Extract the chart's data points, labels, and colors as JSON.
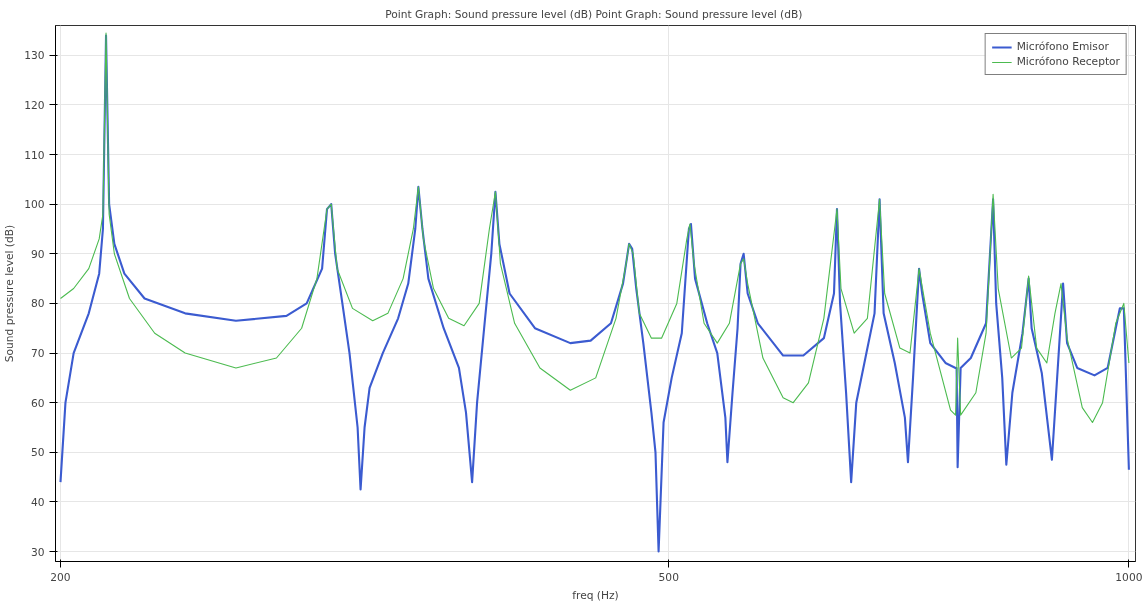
{
  "chart_data": {
    "type": "line",
    "title": "Point Graph: Sound pressure level (dB)  Point Graph: Sound pressure level (dB)",
    "xlabel": "freq (Hz)",
    "ylabel": "Sound pressure level (dB)",
    "log": "x",
    "xlim": [
      198.5,
      1010
    ],
    "xticks": [
      200,
      500,
      1000
    ],
    "ylim": [
      28,
      136
    ],
    "yticks": [
      30,
      40,
      50,
      60,
      70,
      80,
      90,
      100,
      110,
      120,
      130
    ],
    "grid": true,
    "legend": "top right",
    "line_style": "solid",
    "marker": "none",
    "series": [
      {
        "name": "Micrófono Emisor",
        "color": "#3b5bd0",
        "x": [
          200,
          201.5,
          204,
          208.7,
          212,
          213.2,
          214.2,
          215.2,
          216.9,
          220.2,
          227,
          241.3,
          260.5,
          281.1,
          289.8,
          296.6,
          298.8,
          300.7,
          302.5,
          305.8,
          309.1,
          312.9,
          314.3,
          316.2,
          318.6,
          325,
          332.6,
          337.7,
          341.3,
          342.9,
          345,
          348.1,
          356.2,
          364.5,
          368.4,
          371.8,
          374.6,
          378.6,
          382.7,
          385.1,
          387.4,
          393.4,
          408.7,
          431.1,
          444.5,
          458.3,
          466.7,
          471,
          473.2,
          476.1,
          481.2,
          487.1,
          490.1,
          492.4,
          496.1,
          502.2,
          509.9,
          515.4,
          517,
          520.2,
          529.8,
          537.9,
          544.5,
          546.2,
          550.4,
          554.6,
          557.1,
          559.7,
          563.1,
          571.8,
          594,
          612.4,
          631.6,
          641.3,
          644.2,
          647.2,
          653.1,
          658.1,
          663.2,
          673.4,
          681.7,
          686.9,
          691.1,
          702.8,
          713.6,
          716.9,
          722.4,
          729,
          732.4,
          741.4,
          758.6,
          770.2,
          771.4,
          772.6,
          776.1,
          788.1,
          806.4,
          815,
          818.8,
          826.3,
          831.4,
          839,
          851.9,
          859.8,
          863.7,
          877,
          890.5,
          900.1,
          905.6,
          911.1,
          925.1,
          949.5,
          968.5,
          980.4,
          986.4,
          992.4,
          1000
        ],
        "values": [
          44,
          60,
          70,
          78,
          86,
          95,
          134,
          100,
          92,
          86,
          81,
          78,
          76.5,
          77.5,
          80,
          87,
          99,
          100,
          90,
          80,
          70,
          55,
          42.5,
          55,
          63,
          70,
          77,
          84,
          95,
          103.5,
          95,
          85,
          75,
          67,
          58,
          44,
          60,
          75,
          90,
          102.5,
          92,
          82,
          75,
          72,
          72.5,
          76,
          84,
          92,
          91,
          83,
          72,
          58,
          50,
          30,
          56,
          65,
          74,
          95,
          96,
          85,
          76,
          70,
          57,
          48,
          62,
          75,
          88,
          90,
          82,
          76,
          69.5,
          69.5,
          73,
          82,
          99,
          80,
          62,
          44,
          60,
          70,
          78,
          101,
          78,
          68,
          57,
          48,
          65,
          87,
          82,
          72,
          68,
          67,
          67,
          47,
          67,
          69,
          76,
          101,
          80,
          65,
          47.5,
          62,
          74,
          85,
          75,
          66,
          48.5,
          71,
          84,
          72,
          67,
          65.5,
          67,
          75,
          79,
          79,
          46.5
        ]
      },
      {
        "name": "Micrófono Receptor",
        "color": "#4cbb50",
        "x": [
          200,
          204,
          208.7,
          212,
          213.2,
          214.2,
          215.2,
          216.9,
          221.9,
          230.5,
          241.3,
          260.5,
          276.9,
          287.6,
          294.3,
          298.8,
          300.7,
          303.4,
          310.5,
          320.1,
          327.5,
          335.1,
          340.3,
          342.9,
          345.5,
          350.8,
          358.9,
          367.3,
          375.8,
          381.6,
          385.1,
          388,
          396.4,
          411.8,
          431.1,
          447.9,
          461.8,
          468.9,
          471,
          473.9,
          478.3,
          487.1,
          494.6,
          506.1,
          513.8,
          516.2,
          519.4,
          527.3,
          537.9,
          547.8,
          557.1,
          559.7,
          563.1,
          576.2,
          594,
          603.1,
          617.1,
          631.6,
          644.2,
          648.1,
          661.1,
          674.4,
          686.9,
          692.2,
          708.2,
          719.1,
          729,
          741.4,
          764.4,
          770.2,
          772.6,
          776.1,
          794.1,
          806.4,
          815,
          821.3,
          837.7,
          850.6,
          859.8,
          870.3,
          883.7,
          894.6,
          902.8,
          911.1,
          932.2,
          946.6,
          961.1,
          980.4,
          992.4,
          1000
        ],
        "values": [
          81,
          83,
          87,
          93,
          98,
          134.5,
          98,
          90,
          81,
          74,
          70,
          67,
          69,
          75,
          85,
          99,
          100,
          87,
          79,
          76.5,
          78,
          85,
          95,
          103.5,
          93,
          83,
          77,
          75.5,
          80,
          95,
          102.5,
          88,
          76,
          67,
          62.5,
          65,
          77,
          88,
          92,
          90,
          78,
          73,
          73,
          80,
          93,
          96,
          88,
          76,
          72,
          76,
          88,
          89,
          84,
          69,
          61,
          60,
          64,
          77,
          99,
          83,
          74,
          77,
          101,
          82,
          71,
          70,
          87,
          74,
          58.5,
          57.5,
          73,
          57.5,
          62,
          74,
          102,
          83,
          69,
          71,
          85.5,
          71,
          68,
          78,
          84,
          73,
          59,
          56,
          60,
          76,
          80,
          68
        ]
      }
    ]
  }
}
